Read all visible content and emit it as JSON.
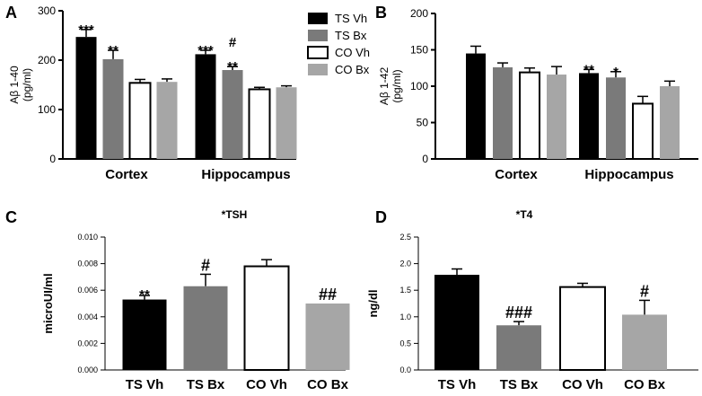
{
  "panel_labels": [
    "A",
    "B",
    "C",
    "D"
  ],
  "colors": {
    "TS Vh": "#000000",
    "TS Bx": "#7a7a7a",
    "CO Vh": "#ffffff",
    "CO Bx": "#a6a6a6",
    "axis": "#000000"
  },
  "chart_data": [
    {
      "type": "bar",
      "panel": "A",
      "title": "",
      "xlabel": "",
      "ylabel": [
        "Aβ 1-40",
        "(pg/ml)"
      ],
      "ylim": [
        0,
        300
      ],
      "yticks": [
        0,
        100,
        200,
        300
      ],
      "yticklabels": [
        "0",
        "100",
        "200",
        "300"
      ],
      "groups": [
        "Cortex",
        "Hippocampus"
      ],
      "series": [
        {
          "name": "TS Vh",
          "values": [
            247,
            212
          ],
          "errors": [
            15,
            8
          ]
        },
        {
          "name": "TS Bx",
          "values": [
            202,
            180
          ],
          "errors": [
            18,
            7
          ]
        },
        {
          "name": "CO Vh",
          "values": [
            154,
            141
          ],
          "errors": [
            7,
            4
          ]
        },
        {
          "name": "CO Bx",
          "values": [
            156,
            145
          ],
          "errors": [
            6,
            3
          ]
        }
      ],
      "annotations": [
        {
          "group": 0,
          "series": 0,
          "text": "***"
        },
        {
          "group": 0,
          "series": 1,
          "text": "**"
        },
        {
          "group": 1,
          "series": 0,
          "text": "***"
        },
        {
          "group": 1,
          "series": 1,
          "text": "#"
        },
        {
          "group": 1,
          "series": 1,
          "text": "**"
        }
      ],
      "legend": {
        "position": "top-right",
        "entries": [
          "TS Vh",
          "TS Bx",
          "CO Vh",
          "CO Bx"
        ]
      }
    },
    {
      "type": "bar",
      "panel": "B",
      "title": "",
      "xlabel": "",
      "ylabel": [
        "Aβ 1-42",
        "(pg/ml)"
      ],
      "ylim": [
        0,
        200
      ],
      "yticks": [
        0,
        50,
        100,
        150,
        200
      ],
      "yticklabels": [
        "0",
        "50",
        "100",
        "150",
        "200"
      ],
      "groups": [
        "Cortex",
        "Hippocampus"
      ],
      "series": [
        {
          "name": "TS Vh",
          "values": [
            145,
            118
          ],
          "errors": [
            10,
            5
          ]
        },
        {
          "name": "TS Bx",
          "values": [
            126,
            112
          ],
          "errors": [
            6,
            8
          ]
        },
        {
          "name": "CO Vh",
          "values": [
            119,
            76
          ],
          "errors": [
            6,
            10
          ]
        },
        {
          "name": "CO Bx",
          "values": [
            116,
            100
          ],
          "errors": [
            11,
            7
          ]
        }
      ],
      "annotations": [
        {
          "group": 1,
          "series": 0,
          "text": "**"
        },
        {
          "group": 1,
          "series": 1,
          "text": "*"
        }
      ]
    },
    {
      "type": "bar",
      "panel": "C",
      "title": "*TSH",
      "xlabel": "",
      "ylabel": "microUI/ml",
      "ylim": [
        0,
        0.01
      ],
      "yticks": [
        0,
        0.002,
        0.004,
        0.006,
        0.008,
        0.01
      ],
      "yticklabels": [
        "0.000",
        "0.002",
        "0.004",
        "0.006",
        "0.008",
        "0.010"
      ],
      "categories": [
        "TS Vh",
        "TS Bx",
        "CO Vh",
        "CO Bx"
      ],
      "values": [
        0.0053,
        0.0063,
        0.0078,
        0.005
      ],
      "errors": [
        0.0003,
        0.0009,
        0.0005,
        0
      ],
      "annotations": [
        "**",
        "#",
        "",
        "##"
      ]
    },
    {
      "type": "bar",
      "panel": "D",
      "title": "*T4",
      "xlabel": "",
      "ylabel": "ng/dl",
      "ylim": [
        0,
        2.5
      ],
      "yticks": [
        0,
        0.5,
        1.0,
        1.5,
        2.0,
        2.5
      ],
      "yticklabels": [
        "0.0",
        "0.5",
        "1.0",
        "1.5",
        "2.0",
        "2.5"
      ],
      "categories": [
        "TS Vh",
        "TS Bx",
        "CO Vh",
        "CO Bx"
      ],
      "values": [
        1.79,
        0.84,
        1.56,
        1.04
      ],
      "errors": [
        0.11,
        0.07,
        0.07,
        0.27
      ],
      "annotations": [
        "",
        "###",
        "",
        "#"
      ]
    }
  ]
}
